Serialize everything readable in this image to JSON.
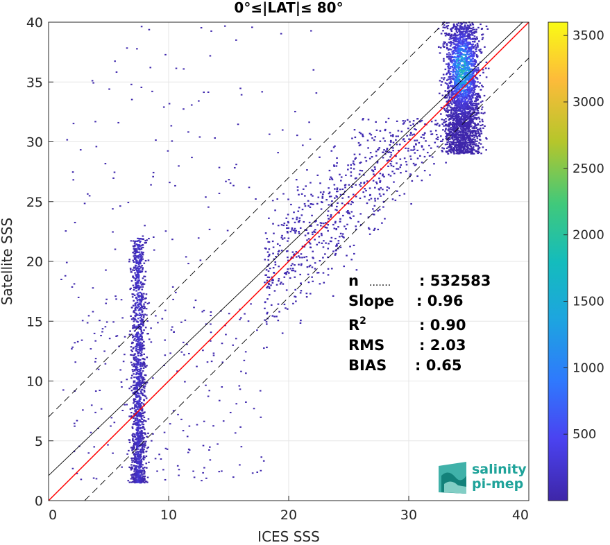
{
  "chart_data": {
    "type": "heatmap",
    "title": "0°≤|LAT|≤ 80°",
    "xlabel": "ICES SSS",
    "ylabel": "Satellite SSS",
    "xlim": [
      0,
      40
    ],
    "ylim": [
      0,
      40
    ],
    "xticks": [
      "0",
      "10",
      "20",
      "30",
      "40"
    ],
    "yticks": [
      "0",
      "5",
      "10",
      "15",
      "20",
      "25",
      "30",
      "35",
      "40"
    ],
    "grid": true,
    "colorbar": {
      "range": [
        0,
        3600
      ],
      "ticks": [
        "500",
        "1000",
        "1500",
        "2000",
        "2500",
        "3000",
        "3500"
      ],
      "colormap": [
        "#3e26a8",
        "#4a43f1",
        "#2f79fd",
        "#1da5df",
        "#14bcbc",
        "#40c97b",
        "#b5c62b",
        "#fdbb3a",
        "#f9fb15"
      ]
    },
    "lines": [
      {
        "name": "one-to-one",
        "color": "#ff0000",
        "style": "solid",
        "slope": 1.0,
        "intercept": 0.0
      },
      {
        "name": "regression",
        "color": "#000000",
        "style": "solid",
        "slope": 0.96,
        "intercept": 2.1
      },
      {
        "name": "upper-bound",
        "color": "#000000",
        "style": "dashed",
        "slope": 1.0,
        "intercept": 7.0
      },
      {
        "name": "lower-bound",
        "color": "#000000",
        "style": "dashed",
        "slope": 1.0,
        "intercept": -3.0
      }
    ],
    "density_clusters": [
      {
        "x_center": 7.5,
        "x_spread": 0.5,
        "y_range": [
          1.5,
          22
        ],
        "peak_count": 300
      },
      {
        "x_center": 34.5,
        "x_spread": 1.2,
        "y_range": [
          29,
          40
        ],
        "peak_count": 2200
      },
      {
        "x_center": 26,
        "x_spread": 5,
        "y_range": [
          12,
          32
        ],
        "peak_count": 60
      }
    ],
    "stats": [
      {
        "label": "n",
        "value": ": 532583"
      },
      {
        "label": "Slope",
        "value": ": 0.96"
      },
      {
        "label": "R2",
        "value": ": 0.90"
      },
      {
        "label": "RMS",
        "value": ": 2.03"
      },
      {
        "label": "BIAS",
        "value": ": 0.65"
      }
    ]
  },
  "logo": {
    "line1": "salinity",
    "line2": "pi-mep",
    "color": "#1fa39a"
  }
}
